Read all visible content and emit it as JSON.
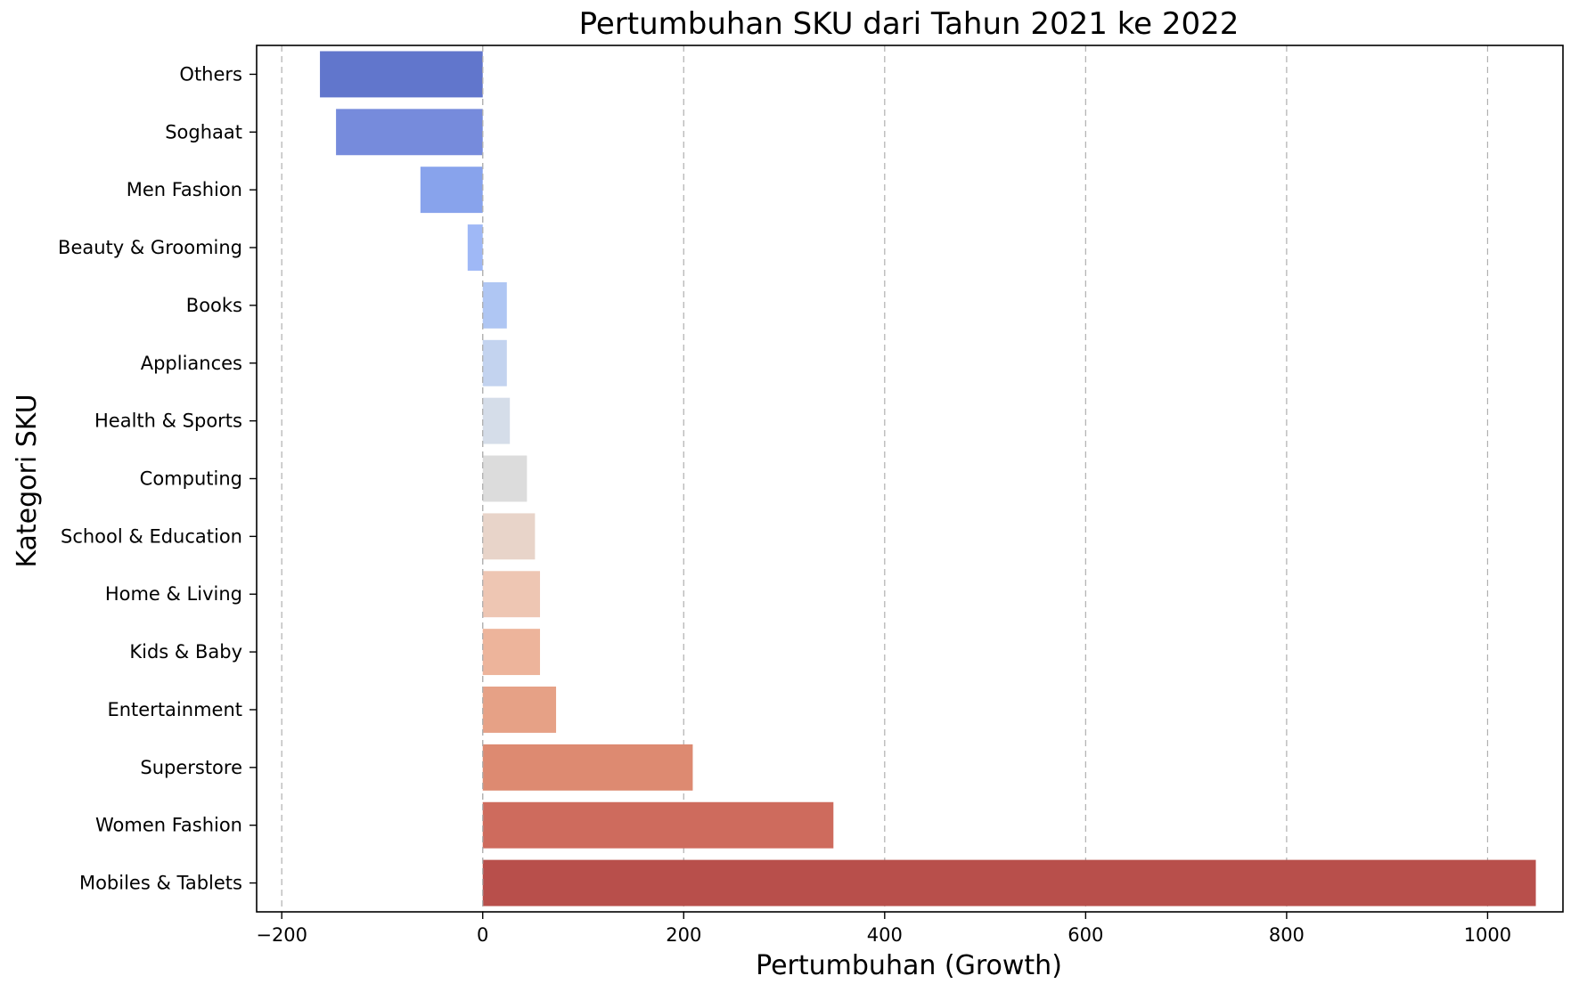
{
  "chart_data": {
    "type": "bar",
    "orientation": "horizontal",
    "title": "Pertumbuhan SKU dari Tahun 2021 ke 2022",
    "xlabel": "Pertumbuhan (Growth)",
    "ylabel": "Kategori SKU",
    "xlim": [
      -225,
      1075
    ],
    "xticks": [
      -200,
      0,
      200,
      400,
      600,
      800,
      1000
    ],
    "xtick_labels": [
      "−200",
      "0",
      "200",
      "400",
      "600",
      "800",
      "1000"
    ],
    "grid": "x-axis dashed",
    "categories": [
      "Others",
      "Soghaat",
      "Men Fashion",
      "Beauty & Grooming",
      "Books",
      "Appliances",
      "Health & Sports",
      "Computing",
      "School & Education",
      "Home & Living",
      "Kids & Baby",
      "Entertainment",
      "Superstore",
      "Women Fashion",
      "Mobiles & Tablets"
    ],
    "values": [
      -162,
      -146,
      -62,
      -15,
      24,
      24,
      27,
      44,
      52,
      57,
      57,
      73,
      209,
      349,
      1048
    ],
    "colors": [
      "#6176cc",
      "#768bdc",
      "#88a3ec",
      "#9fb8f6",
      "#afc6f3",
      "#c3d3ef",
      "#d5dde9",
      "#dcdcdc",
      "#e8d4c9",
      "#eec6b3",
      "#edb49b",
      "#e6a186",
      "#dd8a71",
      "#ce6b5d",
      "#b84f4b"
    ]
  }
}
